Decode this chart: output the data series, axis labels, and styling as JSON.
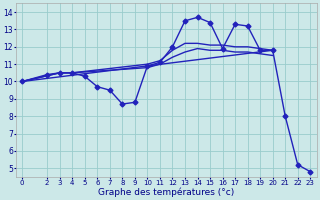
{
  "xlabel": "Graphe des températures (°c)",
  "xlim": [
    -0.5,
    23.5
  ],
  "ylim": [
    4.5,
    14.5
  ],
  "xticks": [
    0,
    2,
    3,
    4,
    5,
    6,
    7,
    8,
    9,
    10,
    11,
    12,
    13,
    14,
    15,
    16,
    17,
    18,
    19,
    20,
    21,
    22,
    23
  ],
  "yticks": [
    5,
    6,
    7,
    8,
    9,
    10,
    11,
    12,
    13,
    14
  ],
  "bg_color": "#cce8e8",
  "line_color": "#2222bb",
  "grid_color": "#99cccc",
  "series": [
    {
      "x": [
        0,
        2,
        3,
        4,
        5,
        6,
        7,
        8,
        9,
        10,
        11,
        12,
        13,
        14,
        15,
        16,
        17,
        18,
        19,
        20,
        21,
        22,
        23
      ],
      "y": [
        10.0,
        10.4,
        10.5,
        10.5,
        10.3,
        9.7,
        9.5,
        8.7,
        8.8,
        10.9,
        11.1,
        12.0,
        13.5,
        13.7,
        13.4,
        11.9,
        13.3,
        13.2,
        11.8,
        11.8,
        8.0,
        5.2,
        4.8
      ],
      "marker": "D",
      "markersize": 2.5,
      "linewidth": 1.0
    },
    {
      "x": [
        0,
        3,
        4,
        10,
        11,
        12,
        13,
        14,
        15,
        16,
        17,
        18,
        19,
        20
      ],
      "y": [
        10.0,
        10.5,
        10.5,
        11.0,
        11.2,
        11.8,
        12.2,
        12.2,
        12.1,
        12.1,
        12.0,
        12.0,
        11.9,
        11.8
      ],
      "marker": null,
      "markersize": 0,
      "linewidth": 1.0
    },
    {
      "x": [
        0,
        3,
        4,
        10,
        11,
        12,
        13,
        14,
        15,
        16,
        17,
        18,
        19,
        20
      ],
      "y": [
        10.0,
        10.5,
        10.5,
        10.8,
        11.0,
        11.4,
        11.7,
        11.9,
        11.8,
        11.8,
        11.7,
        11.7,
        11.6,
        11.5
      ],
      "marker": null,
      "markersize": 0,
      "linewidth": 1.0
    },
    {
      "x": [
        0,
        20
      ],
      "y": [
        10.0,
        11.8
      ],
      "marker": null,
      "markersize": 0,
      "linewidth": 1.0
    }
  ]
}
